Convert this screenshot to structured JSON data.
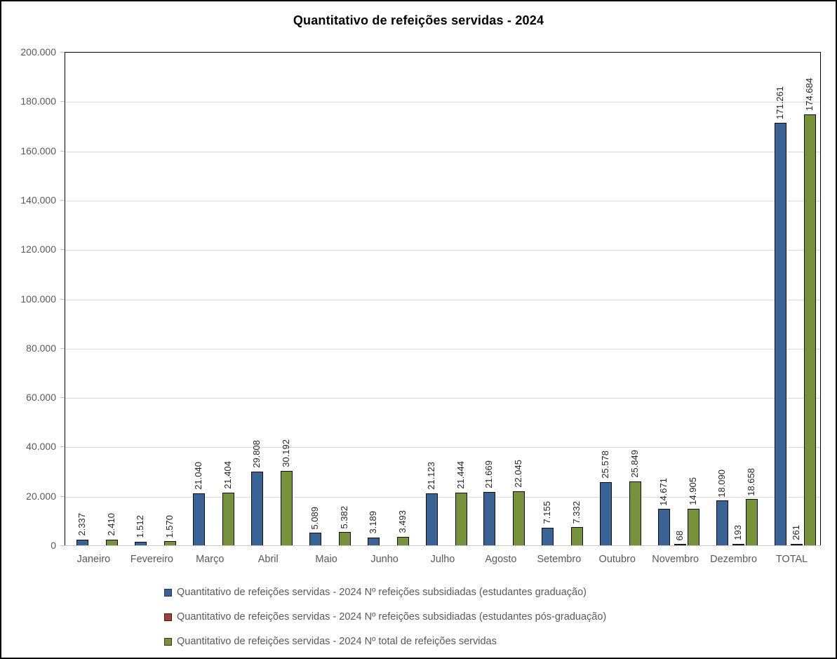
{
  "chart_data": {
    "type": "bar",
    "title": "Quantitativo de refeições servidas - 2024",
    "categories": [
      "Janeiro",
      "Fevereiro",
      "Março",
      "Abril",
      "Maio",
      "Junho",
      "Julho",
      "Agosto",
      "Setembro",
      "Outubro",
      "Novembro",
      "Dezembro",
      "TOTAL"
    ],
    "series": [
      {
        "name": "Quantitativo de refeições servidas - 2024 Nº refeições subsidiadas (estudantes graduação)",
        "color": "#3a6294",
        "border_color": "#0d0d0d",
        "values": [
          2337,
          1512,
          21040,
          29808,
          5089,
          3189,
          21123,
          21669,
          7155,
          25578,
          14671,
          18090,
          171261
        ],
        "labels": [
          "2.337",
          "1.512",
          "21.040",
          "29.808",
          "5.089",
          "3.189",
          "21.123",
          "21.669",
          "7.155",
          "25.578",
          "14.671",
          "18.090",
          "171.261"
        ]
      },
      {
        "name": "Quantitativo de refeições servidas - 2024 Nº refeições subsidiadas (estudantes pós-graduação)",
        "color": "#9e413e",
        "border_color": "#0d0d0d",
        "values": [
          0,
          0,
          0,
          0,
          0,
          0,
          0,
          0,
          0,
          0,
          68,
          193,
          261
        ],
        "labels": [
          "",
          "",
          "",
          "",
          "",
          "",
          "",
          "",
          "",
          "",
          "68",
          "193",
          "261"
        ]
      },
      {
        "name": "Quantitativo de refeições servidas - 2024 Nº total de refeições servidas",
        "color": "#76923c",
        "border_color": "#0d0d0d",
        "values": [
          2410,
          1570,
          21404,
          30192,
          5382,
          3493,
          21444,
          22045,
          7332,
          25849,
          14905,
          18658,
          174684
        ],
        "labels": [
          "2.410",
          "1.570",
          "21.404",
          "30.192",
          "5.382",
          "3.493",
          "21.444",
          "22.045",
          "7.332",
          "25.849",
          "14.905",
          "18.658",
          "174.684"
        ]
      }
    ],
    "ylim": [
      0,
      200000
    ],
    "y_ticks": [
      {
        "label": "200.000",
        "value": 200000
      },
      {
        "label": "180.000",
        "value": 180000
      },
      {
        "label": "160.000",
        "value": 160000
      },
      {
        "label": "140.000",
        "value": 140000
      },
      {
        "label": "120.000",
        "value": 120000
      },
      {
        "label": "100.000",
        "value": 100000
      },
      {
        "label": "80.000",
        "value": 80000
      },
      {
        "label": "60.000",
        "value": 60000
      },
      {
        "label": "40.000",
        "value": 40000
      },
      {
        "label": "20.000",
        "value": 20000
      },
      {
        "label": "0",
        "value": 0
      }
    ],
    "grid": true,
    "legend_position": "bottom",
    "colors": {
      "grid": "#d9d9d9",
      "axis_text": "#595959",
      "data_label_text": "#262626",
      "title_text": "#000000"
    },
    "legend": [
      {
        "label": "Quantitativo de refeições servidas - 2024 Nº refeições subsidiadas (estudantes graduação)",
        "color": "#3a6294",
        "border_color": "#17375d"
      },
      {
        "label": "Quantitativo de refeições servidas - 2024 Nº refeições subsidiadas (estudantes pós-graduação)",
        "color": "#9e413e",
        "border_color": "#4a1917"
      },
      {
        "label": "Quantitativo de refeições servidas - 2024 Nº total de refeições servidas",
        "color": "#76923c",
        "border_color": "#2f3b15"
      }
    ]
  }
}
